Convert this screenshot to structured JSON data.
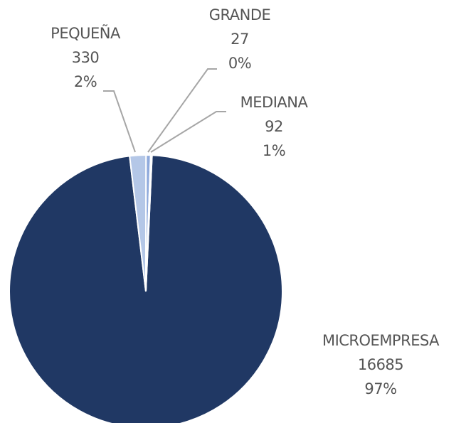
{
  "chart_data": {
    "type": "pie",
    "categories": [
      "MICROEMPRESA",
      "PEQUEÑA",
      "MEDIANA",
      "GRANDE"
    ],
    "values": [
      16685,
      330,
      92,
      27
    ],
    "percent_labels": [
      "97%",
      "2%",
      "1%",
      "0%"
    ],
    "colors": [
      "#203864",
      "#b4c7e7",
      "#8faadc",
      "#dae3f3"
    ]
  }
}
